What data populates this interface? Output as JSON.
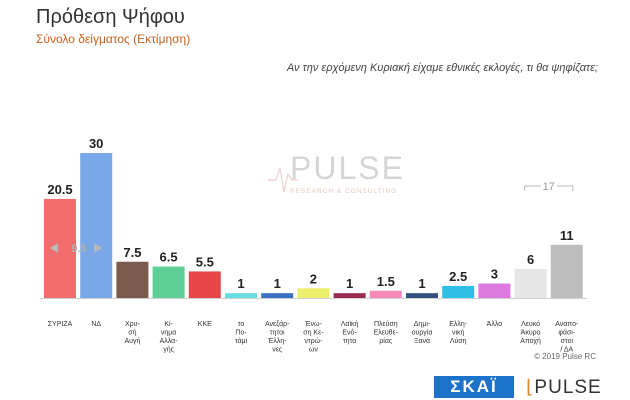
{
  "header": {
    "title": "Πρόθεση Ψήφου",
    "subtitle": "Σύνολο δείγματος   (Εκτίμηση)",
    "question": "Αν την ερχόμενη Κυριακή είχαμε εθνικές εκλογές, τι θα ψηφίζατε;"
  },
  "watermark": {
    "word": "PULSE",
    "sub": "RESEARCH & CONSULTING"
  },
  "footer": {
    "copyright": "© 2019 Pulse RC",
    "skai": "ΣΚΑΪ",
    "pulse": "PULSE"
  },
  "annotations": {
    "gap_label": "9.5",
    "bracket_label": "17"
  },
  "colors": {
    "syriza": "#f26d6d",
    "nd": "#7aa7e8",
    "xa": "#7a5b4e",
    "kinal": "#5fcf98",
    "kke": "#e8474a",
    "potami": "#66dde0",
    "anex": "#3a70c2",
    "ek": "#ecef6c",
    "le": "#9a2b52",
    "ellel": "#f58ab8",
    "dimsy": "#34507e",
    "ellysi": "#2fbfe6",
    "allo": "#dd7ae0",
    "leyko": "#e6e6e6",
    "anapof": "#bdbdbd"
  },
  "chart_data": {
    "type": "bar",
    "categories": [
      "ΣΥΡΙΖΑ",
      "ΝΔ",
      "Χρυσή Αυγή",
      "Κίνημα Αλλαγής",
      "ΚΚΕ",
      "Το Ποτάμι",
      "Ανεξάρτητοι Έλληνες",
      "Ένωση Κεντρώων",
      "Λαϊκή Ενότητα",
      "Πλεύση Ελευθερίας",
      "Δημιουργία Ξανά",
      "Ελληνική Λύση",
      "Άλλο",
      "Λευκό Άκυρο Αποχή",
      "Αναποφάσιστοι / ΔΑ"
    ],
    "category_lines": [
      [
        "ΣΥΡΙΖΑ"
      ],
      [
        "ΝΔ"
      ],
      [
        "Χρυ-",
        "σή",
        "Αυγή"
      ],
      [
        "Κί-",
        "νημα",
        "Αλλα-",
        "γής"
      ],
      [
        "ΚΚΕ"
      ],
      [
        "το",
        "Πο-",
        "τάμι"
      ],
      [
        "Ανεξάρ-",
        "τητοι",
        "Έλλη-",
        "νες"
      ],
      [
        "Ένω-",
        "ση Κε-",
        "ντρώ-",
        "ων"
      ],
      [
        "Λαϊκή",
        "Ενό-",
        "τητα"
      ],
      [
        "Πλεύση",
        "Ελευθε-",
        "ρίας"
      ],
      [
        "Δημι-",
        "ουργία",
        "Ξανά"
      ],
      [
        "Ελλη-",
        "νική",
        "Λύση"
      ],
      [
        "Άλλο"
      ],
      [
        "Λευκό",
        "Άκυρο",
        "Αποχή"
      ],
      [
        "Αναπο-",
        "φάσι-",
        "στοι",
        "/ ΔΑ"
      ]
    ],
    "values": [
      20.5,
      30,
      7.5,
      6.5,
      5.5,
      1,
      1,
      2,
      1,
      1.5,
      1,
      2.5,
      3,
      6,
      11
    ],
    "value_labels": [
      "20.5",
      "30",
      "7.5",
      "6.5",
      "5.5",
      "1",
      "1",
      "2",
      "1",
      "1.5",
      "1",
      "2.5",
      "3",
      "6",
      "11"
    ],
    "color_keys": [
      "syriza",
      "nd",
      "xa",
      "kinal",
      "kke",
      "potami",
      "anex",
      "ek",
      "le",
      "ellel",
      "dimsy",
      "ellysi",
      "allo",
      "leyko",
      "anapof"
    ],
    "ylim": [
      0,
      30
    ],
    "grid": false
  }
}
